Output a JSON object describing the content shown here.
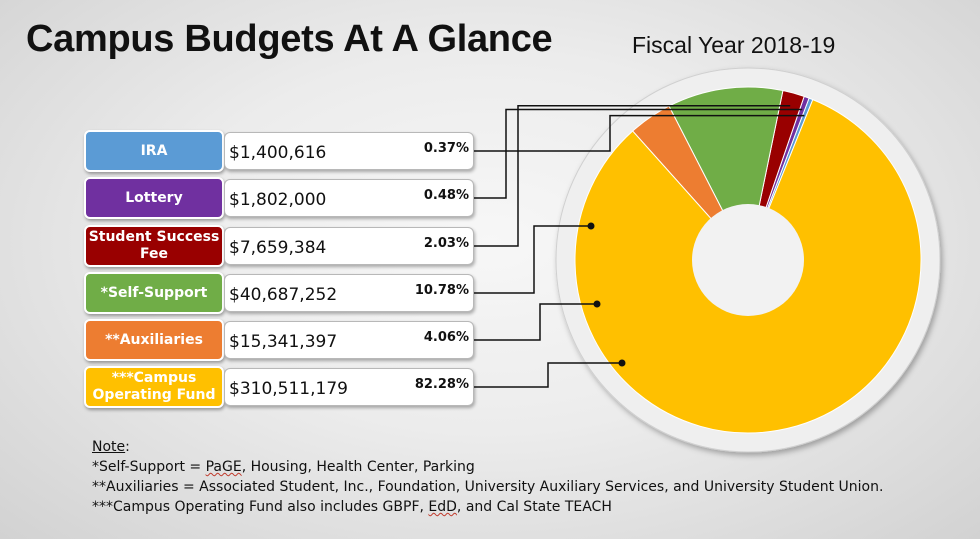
{
  "title": "Campus Budgets At A Glance",
  "subtitle": "Fiscal Year 2018-19",
  "chart_data": {
    "type": "pie",
    "variant": "donut",
    "title": "Campus Budgets At A Glance",
    "subtitle": "Fiscal Year 2018-19",
    "categories": [
      "IRA",
      "Lottery",
      "Student Success Fee",
      "*Self-Support",
      "**Auxiliaries",
      "***Campus Operating Fund"
    ],
    "label_lines": [
      [
        "IRA"
      ],
      [
        "Lottery"
      ],
      [
        "Student Success",
        "Fee"
      ],
      [
        "*Self-Support"
      ],
      [
        "**Auxiliaries"
      ],
      [
        "***Campus",
        "Operating Fund"
      ]
    ],
    "amounts": [
      "$1,400,616",
      "$1,802,000",
      "$7,659,384",
      "$40,687,252",
      "$15,341,397",
      "$310,511,179"
    ],
    "values": [
      1400616,
      1802000,
      7659384,
      40687252,
      15341397,
      310511179
    ],
    "percent_labels": [
      "0.37%",
      "0.48%",
      "2.03%",
      "10.78%",
      "4.06%",
      "82.28%"
    ],
    "colors": [
      "#5b9bd5",
      "#7030a0",
      "#990000",
      "#70ad47",
      "#ed7d31",
      "#ffc000"
    ]
  },
  "notes": {
    "heading": "Note",
    "colon": ":",
    "line1_prefix": "*Self-Support = ",
    "line1_flagged": "PaGE",
    "line1_suffix": ", Housing, Health Center, Parking",
    "line2": "**Auxiliaries = Associated Student, Inc., Foundation, University Auxiliary Services, and University Student Union.",
    "line3_prefix": "***Campus Operating Fund also includes GBPF, ",
    "line3_flagged": "EdD",
    "line3_suffix": ", and Cal State TEACH"
  }
}
